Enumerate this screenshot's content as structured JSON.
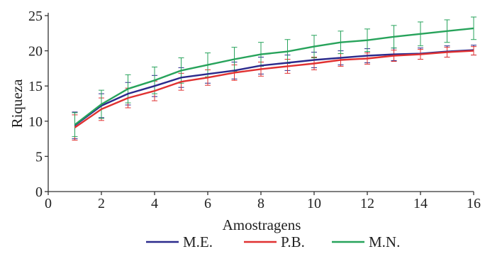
{
  "chart_data": {
    "type": "line",
    "title": "",
    "xlabel": "Amostragens",
    "ylabel": "Riqueza",
    "xlim": [
      0,
      16
    ],
    "ylim": [
      0,
      25
    ],
    "x_ticks": [
      0,
      2,
      4,
      6,
      8,
      10,
      12,
      14,
      16
    ],
    "y_ticks": [
      0,
      5,
      10,
      15,
      20,
      25
    ],
    "grid": false,
    "legend_position": "bottom",
    "error_bars": true,
    "x": [
      1,
      2,
      3,
      4,
      5,
      6,
      7,
      8,
      9,
      10,
      11,
      12,
      13,
      14,
      15,
      16
    ],
    "series": [
      {
        "name": "M.E.",
        "color": "#2b2a8c",
        "values": [
          9.4,
          12.2,
          13.9,
          15.0,
          16.2,
          16.7,
          17.2,
          17.9,
          18.3,
          18.7,
          19.0,
          19.3,
          19.5,
          19.6,
          19.9,
          20.1
        ],
        "error": [
          1.9,
          1.7,
          1.6,
          1.5,
          1.4,
          1.3,
          1.2,
          1.2,
          1.1,
          1.1,
          1.0,
          1.0,
          0.9,
          0.8,
          0.8,
          0.7
        ]
      },
      {
        "name": "P.B.",
        "color": "#e03131",
        "values": [
          9.1,
          11.7,
          13.3,
          14.3,
          15.6,
          16.2,
          16.9,
          17.4,
          17.8,
          18.2,
          18.7,
          18.9,
          19.3,
          19.5,
          19.8,
          20.0
        ],
        "error": [
          1.8,
          1.6,
          1.4,
          1.4,
          1.2,
          1.1,
          1.1,
          1.0,
          1.0,
          0.9,
          0.9,
          0.8,
          0.8,
          0.7,
          0.7,
          0.6
        ]
      },
      {
        "name": "M.N.",
        "color": "#27a35b",
        "values": [
          9.5,
          12.4,
          14.6,
          15.8,
          17.2,
          18.0,
          18.8,
          19.5,
          19.9,
          20.6,
          21.2,
          21.5,
          22.0,
          22.4,
          22.8,
          23.2
        ],
        "error": [
          1.7,
          2.0,
          2.0,
          1.9,
          1.8,
          1.7,
          1.7,
          1.7,
          1.7,
          1.6,
          1.6,
          1.6,
          1.6,
          1.7,
          1.6,
          1.6
        ]
      }
    ]
  }
}
